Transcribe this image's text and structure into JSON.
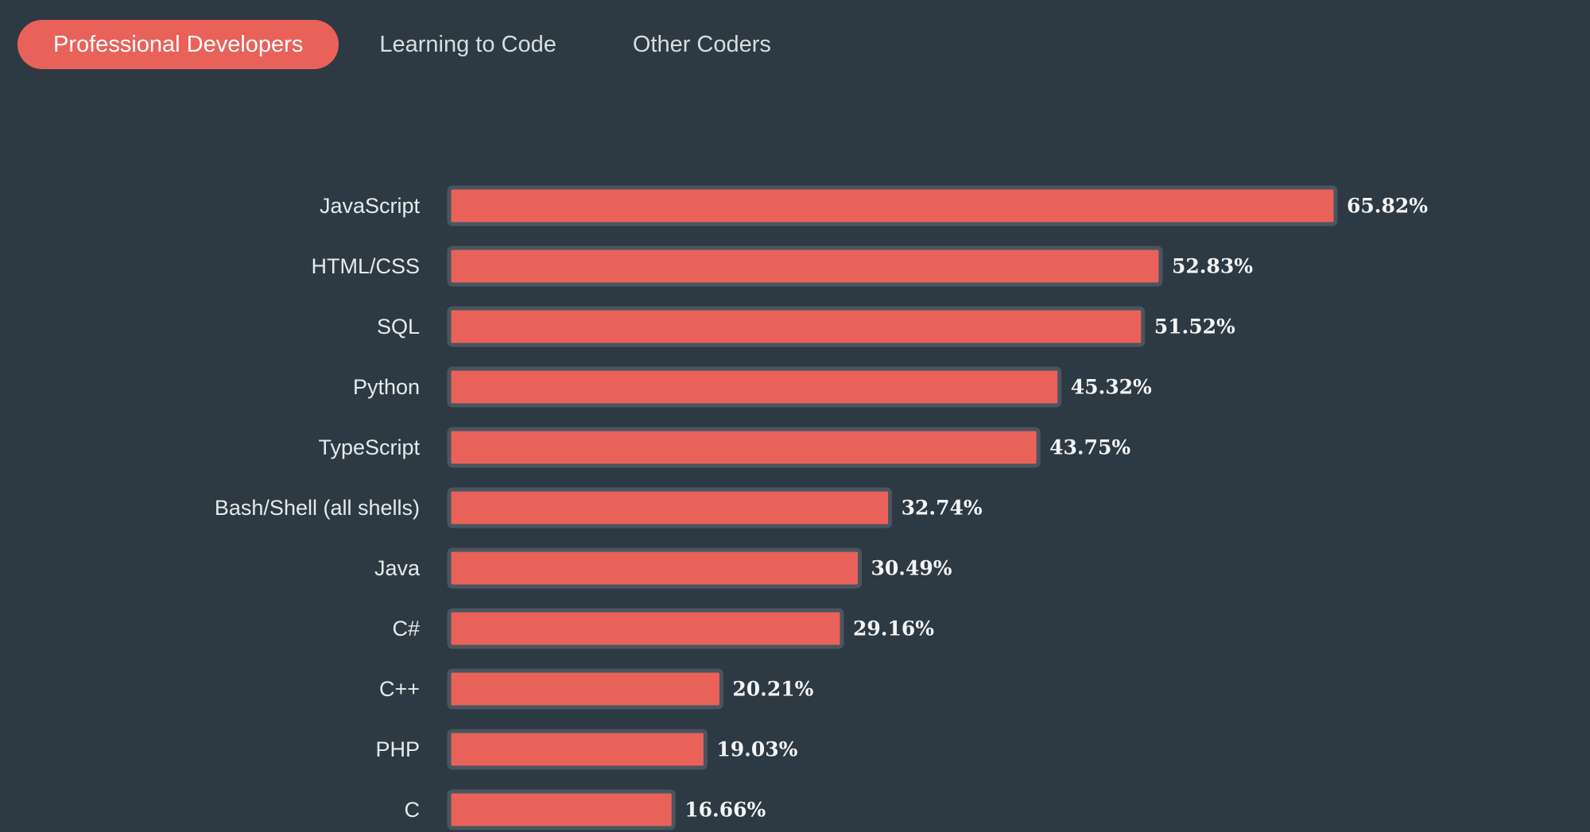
{
  "tabs": [
    {
      "label": "Professional Developers",
      "active": true
    },
    {
      "label": "Learning to Code",
      "active": false
    },
    {
      "label": "Other Coders",
      "active": false
    }
  ],
  "colors": {
    "background": "#2d3a43",
    "bar": "#e9625a",
    "bar_border": "#4a5560",
    "active_tab": "#e9625a"
  },
  "chart_data": {
    "type": "bar",
    "orientation": "horizontal",
    "categories": [
      "JavaScript",
      "HTML/CSS",
      "SQL",
      "Python",
      "TypeScript",
      "Bash/Shell (all shells)",
      "Java",
      "C#",
      "C++",
      "PHP",
      "C"
    ],
    "values": [
      65.82,
      52.83,
      51.52,
      45.32,
      43.75,
      32.74,
      30.49,
      29.16,
      20.21,
      19.03,
      16.66
    ],
    "value_labels": [
      "65.82%",
      "52.83%",
      "51.52%",
      "45.32%",
      "43.75%",
      "32.74%",
      "30.49%",
      "29.16%",
      "20.21%",
      "19.03%",
      "16.66%"
    ],
    "title": "",
    "xlabel": "",
    "ylabel": "",
    "grid": false
  }
}
